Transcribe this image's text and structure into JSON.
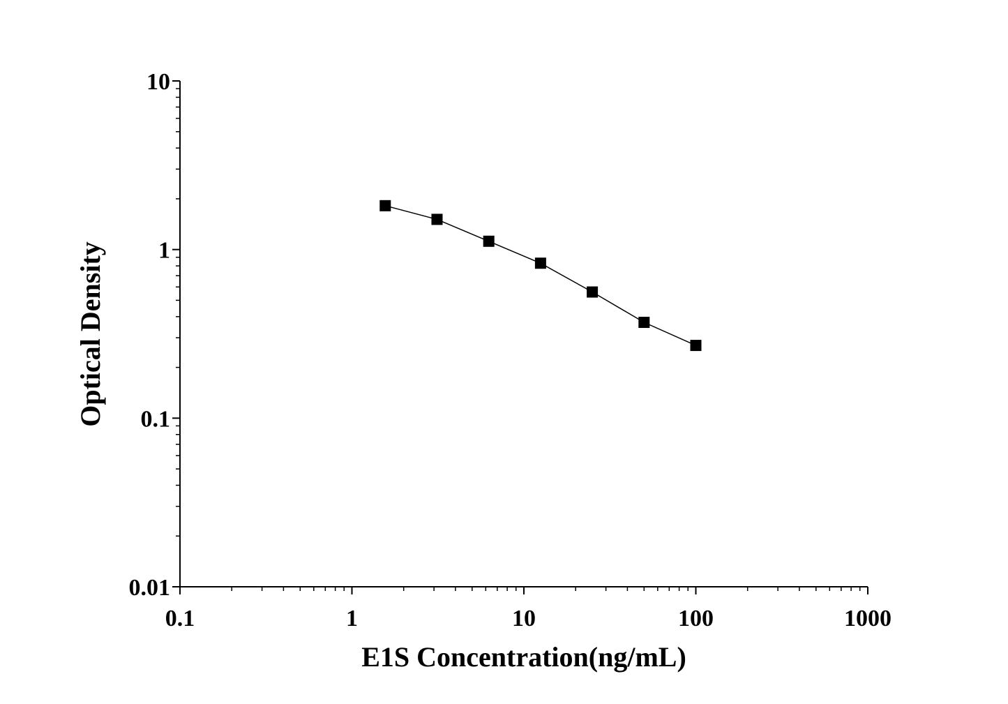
{
  "chart_data": {
    "type": "line",
    "xlabel": "E1S Concentration(ng/mL)",
    "ylabel": "Optical Density",
    "x": [
      1.5625,
      3.125,
      6.25,
      12.5,
      25,
      50,
      100
    ],
    "series": [
      {
        "values": [
          1.82,
          1.51,
          1.12,
          0.83,
          0.56,
          0.37,
          0.27
        ],
        "color": "#000000",
        "marker": "square"
      }
    ],
    "xlim": [
      0.1,
      1000
    ],
    "ylim": [
      0.01,
      10
    ],
    "xticks": [
      0.1,
      1,
      10,
      100,
      1000
    ],
    "yticks": [
      0.01,
      0.1,
      1,
      10
    ],
    "xscale": "log",
    "yscale": "log"
  }
}
